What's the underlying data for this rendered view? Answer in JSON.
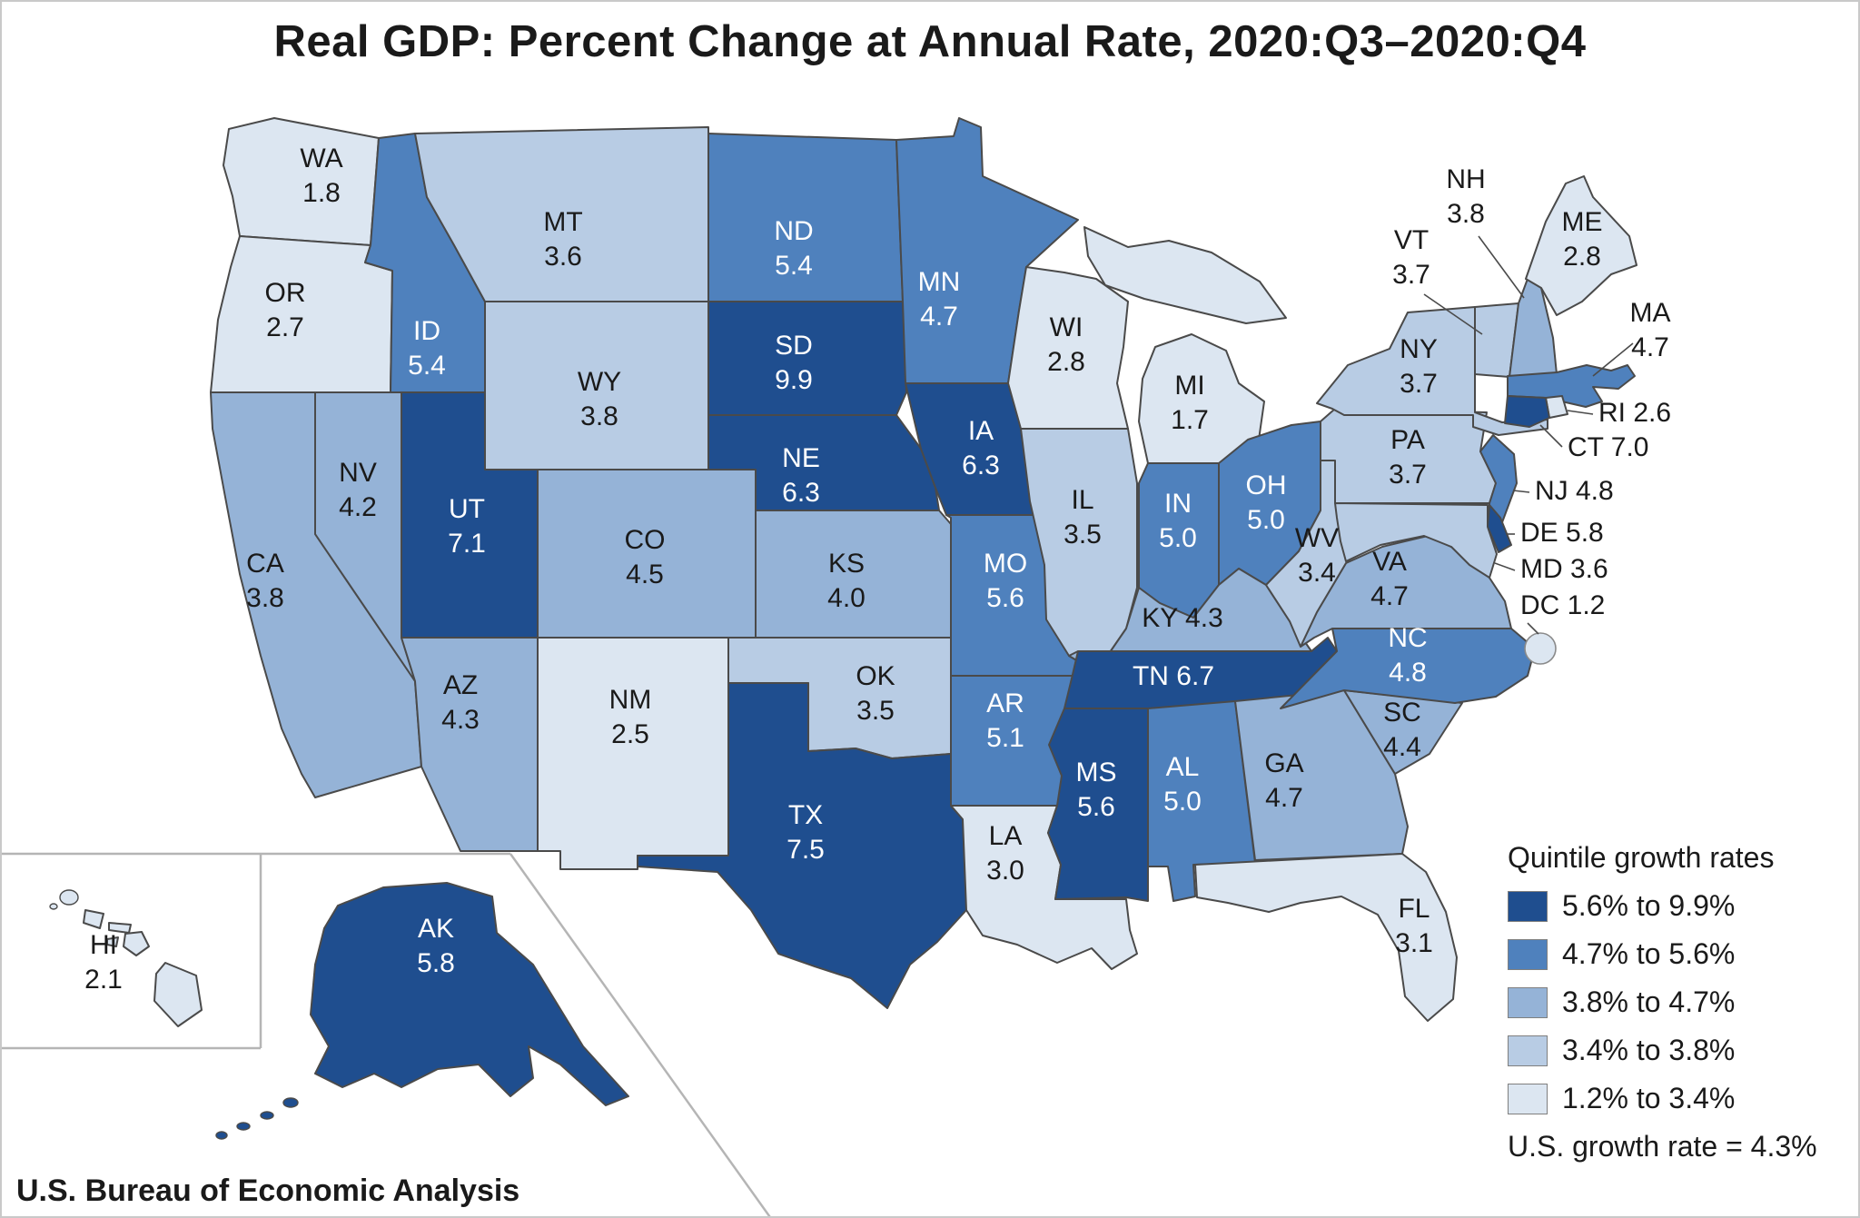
{
  "title": "Real GDP: Percent Change at Annual Rate, 2020:Q3–2020:Q4",
  "source": "U.S. Bureau of Economic Analysis",
  "legend": {
    "title": "Quintile growth rates",
    "items": [
      {
        "label": "5.6% to 9.9%",
        "color": "#1f4e8f"
      },
      {
        "label": "4.7% to 5.6%",
        "color": "#4f81bd"
      },
      {
        "label": "3.8% to 4.7%",
        "color": "#95b3d7"
      },
      {
        "label": "3.4% to 3.8%",
        "color": "#b8cce4"
      },
      {
        "label": "1.2% to 3.4%",
        "color": "#dce6f1"
      }
    ],
    "footnote": "U.S. growth rate = 4.3%"
  },
  "map": {
    "border_color": "#4a4a4a",
    "label_dark": "#1a1a1a",
    "label_light": "#ffffff"
  },
  "chart_data": {
    "type": "choropleth",
    "metric": "Real GDP: Percent Change at Annual Rate, 2020:Q3–2020:Q4",
    "us_growth_rate": 4.3,
    "states": [
      {
        "abbr": "WA",
        "value": 1.8,
        "quintile": 5
      },
      {
        "abbr": "OR",
        "value": 2.7,
        "quintile": 5
      },
      {
        "abbr": "CA",
        "value": 3.8,
        "quintile": 3
      },
      {
        "abbr": "NV",
        "value": 4.2,
        "quintile": 3
      },
      {
        "abbr": "ID",
        "value": 5.4,
        "quintile": 2
      },
      {
        "abbr": "MT",
        "value": 3.6,
        "quintile": 4
      },
      {
        "abbr": "WY",
        "value": 3.8,
        "quintile": 4
      },
      {
        "abbr": "UT",
        "value": 7.1,
        "quintile": 1
      },
      {
        "abbr": "AZ",
        "value": 4.3,
        "quintile": 3
      },
      {
        "abbr": "NM",
        "value": 2.5,
        "quintile": 5
      },
      {
        "abbr": "CO",
        "value": 4.5,
        "quintile": 3
      },
      {
        "abbr": "ND",
        "value": 5.4,
        "quintile": 2
      },
      {
        "abbr": "SD",
        "value": 9.9,
        "quintile": 1
      },
      {
        "abbr": "NE",
        "value": 6.3,
        "quintile": 1
      },
      {
        "abbr": "KS",
        "value": 4.0,
        "quintile": 3
      },
      {
        "abbr": "OK",
        "value": 3.5,
        "quintile": 4
      },
      {
        "abbr": "TX",
        "value": 7.5,
        "quintile": 1
      },
      {
        "abbr": "MN",
        "value": 4.7,
        "quintile": 2
      },
      {
        "abbr": "IA",
        "value": 6.3,
        "quintile": 1
      },
      {
        "abbr": "MO",
        "value": 5.6,
        "quintile": 2
      },
      {
        "abbr": "AR",
        "value": 5.1,
        "quintile": 2
      },
      {
        "abbr": "LA",
        "value": 3.0,
        "quintile": 5
      },
      {
        "abbr": "WI",
        "value": 2.8,
        "quintile": 5
      },
      {
        "abbr": "IL",
        "value": 3.5,
        "quintile": 4
      },
      {
        "abbr": "MI",
        "value": 1.7,
        "quintile": 5
      },
      {
        "abbr": "IN",
        "value": 5.0,
        "quintile": 2
      },
      {
        "abbr": "OH",
        "value": 5.0,
        "quintile": 2
      },
      {
        "abbr": "KY",
        "value": 4.3,
        "quintile": 3
      },
      {
        "abbr": "TN",
        "value": 6.7,
        "quintile": 1
      },
      {
        "abbr": "MS",
        "value": 5.6,
        "quintile": 1
      },
      {
        "abbr": "AL",
        "value": 5.0,
        "quintile": 2
      },
      {
        "abbr": "GA",
        "value": 4.7,
        "quintile": 3
      },
      {
        "abbr": "FL",
        "value": 3.1,
        "quintile": 5
      },
      {
        "abbr": "SC",
        "value": 4.4,
        "quintile": 3
      },
      {
        "abbr": "NC",
        "value": 4.8,
        "quintile": 2
      },
      {
        "abbr": "VA",
        "value": 4.7,
        "quintile": 3
      },
      {
        "abbr": "WV",
        "value": 3.4,
        "quintile": 4
      },
      {
        "abbr": "PA",
        "value": 3.7,
        "quintile": 4
      },
      {
        "abbr": "NY",
        "value": 3.7,
        "quintile": 4
      },
      {
        "abbr": "VT",
        "value": 3.7,
        "quintile": 4
      },
      {
        "abbr": "NH",
        "value": 3.8,
        "quintile": 3
      },
      {
        "abbr": "ME",
        "value": 2.8,
        "quintile": 5
      },
      {
        "abbr": "MA",
        "value": 4.7,
        "quintile": 2
      },
      {
        "abbr": "RI",
        "value": 2.6,
        "quintile": 5
      },
      {
        "abbr": "CT",
        "value": 7.0,
        "quintile": 1
      },
      {
        "abbr": "NJ",
        "value": 4.8,
        "quintile": 2
      },
      {
        "abbr": "DE",
        "value": 5.8,
        "quintile": 1
      },
      {
        "abbr": "MD",
        "value": 3.6,
        "quintile": 4
      },
      {
        "abbr": "DC",
        "value": 1.2,
        "quintile": 5
      },
      {
        "abbr": "AK",
        "value": 5.8,
        "quintile": 1
      },
      {
        "abbr": "HI",
        "value": 2.1,
        "quintile": 5
      }
    ]
  }
}
